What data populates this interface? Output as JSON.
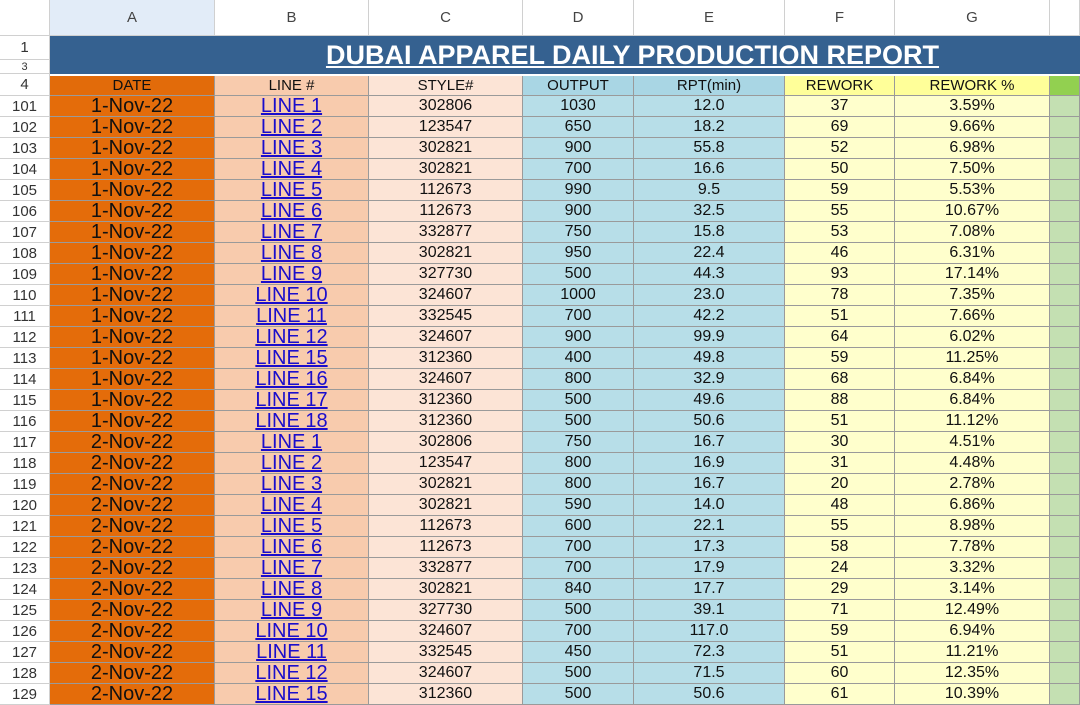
{
  "sheet": {
    "title": "DUBAI APPAREL DAILY PRODUCTION REPORT",
    "columns": [
      "A",
      "B",
      "C",
      "D",
      "E",
      "F",
      "G"
    ],
    "top_rows": [
      "1",
      "3",
      "4"
    ],
    "header": [
      "DATE",
      "LINE #",
      "STYLE#",
      "OUTPUT",
      "RPT(min)",
      "REWORK",
      "REWORK %"
    ],
    "rows": [
      [
        "101",
        "1-Nov-22",
        "LINE 1",
        "302806",
        "1030",
        "12.0",
        "37",
        "3.59%"
      ],
      [
        "102",
        "1-Nov-22",
        "LINE 2",
        "123547",
        "650",
        "18.2",
        "69",
        "9.66%"
      ],
      [
        "103",
        "1-Nov-22",
        "LINE 3",
        "302821",
        "900",
        "55.8",
        "52",
        "6.98%"
      ],
      [
        "104",
        "1-Nov-22",
        "LINE 4",
        "302821",
        "700",
        "16.6",
        "50",
        "7.50%"
      ],
      [
        "105",
        "1-Nov-22",
        "LINE 5",
        "112673",
        "990",
        "9.5",
        "59",
        "5.53%"
      ],
      [
        "106",
        "1-Nov-22",
        "LINE 6",
        "112673",
        "900",
        "32.5",
        "55",
        "10.67%"
      ],
      [
        "107",
        "1-Nov-22",
        "LINE 7",
        "332877",
        "750",
        "15.8",
        "53",
        "7.08%"
      ],
      [
        "108",
        "1-Nov-22",
        "LINE 8",
        "302821",
        "950",
        "22.4",
        "46",
        "6.31%"
      ],
      [
        "109",
        "1-Nov-22",
        "LINE 9",
        "327730",
        "500",
        "44.3",
        "93",
        "17.14%"
      ],
      [
        "110",
        "1-Nov-22",
        "LINE 10",
        "324607",
        "1000",
        "23.0",
        "78",
        "7.35%"
      ],
      [
        "111",
        "1-Nov-22",
        "LINE 11",
        "332545",
        "700",
        "42.2",
        "51",
        "7.66%"
      ],
      [
        "112",
        "1-Nov-22",
        "LINE 12",
        "324607",
        "900",
        "99.9",
        "64",
        "6.02%"
      ],
      [
        "113",
        "1-Nov-22",
        "LINE 15",
        "312360",
        "400",
        "49.8",
        "59",
        "11.25%"
      ],
      [
        "114",
        "1-Nov-22",
        "LINE 16",
        "324607",
        "800",
        "32.9",
        "68",
        "6.84%"
      ],
      [
        "115",
        "1-Nov-22",
        "LINE 17",
        "312360",
        "500",
        "49.6",
        "88",
        "6.84%"
      ],
      [
        "116",
        "1-Nov-22",
        "LINE 18",
        "312360",
        "500",
        "50.6",
        "51",
        "11.12%"
      ],
      [
        "117",
        "2-Nov-22",
        "LINE 1",
        "302806",
        "750",
        "16.7",
        "30",
        "4.51%"
      ],
      [
        "118",
        "2-Nov-22",
        "LINE 2",
        "123547",
        "800",
        "16.9",
        "31",
        "4.48%"
      ],
      [
        "119",
        "2-Nov-22",
        "LINE 3",
        "302821",
        "800",
        "16.7",
        "20",
        "2.78%"
      ],
      [
        "120",
        "2-Nov-22",
        "LINE 4",
        "302821",
        "590",
        "14.0",
        "48",
        "6.86%"
      ],
      [
        "121",
        "2-Nov-22",
        "LINE 5",
        "112673",
        "600",
        "22.1",
        "55",
        "8.98%"
      ],
      [
        "122",
        "2-Nov-22",
        "LINE 6",
        "112673",
        "700",
        "17.3",
        "58",
        "7.78%"
      ],
      [
        "123",
        "2-Nov-22",
        "LINE 7",
        "332877",
        "700",
        "17.9",
        "24",
        "3.32%"
      ],
      [
        "124",
        "2-Nov-22",
        "LINE 8",
        "302821",
        "840",
        "17.7",
        "29",
        "3.14%"
      ],
      [
        "125",
        "2-Nov-22",
        "LINE 9",
        "327730",
        "500",
        "39.1",
        "71",
        "12.49%"
      ],
      [
        "126",
        "2-Nov-22",
        "LINE 10",
        "324607",
        "700",
        "117.0",
        "59",
        "6.94%"
      ],
      [
        "127",
        "2-Nov-22",
        "LINE 11",
        "332545",
        "450",
        "72.3",
        "51",
        "11.21%"
      ],
      [
        "128",
        "2-Nov-22",
        "LINE 12",
        "324607",
        "500",
        "71.5",
        "60",
        "12.35%"
      ],
      [
        "129",
        "2-Nov-22",
        "LINE 15",
        "312360",
        "500",
        "50.6",
        "61",
        "10.39%"
      ]
    ]
  }
}
